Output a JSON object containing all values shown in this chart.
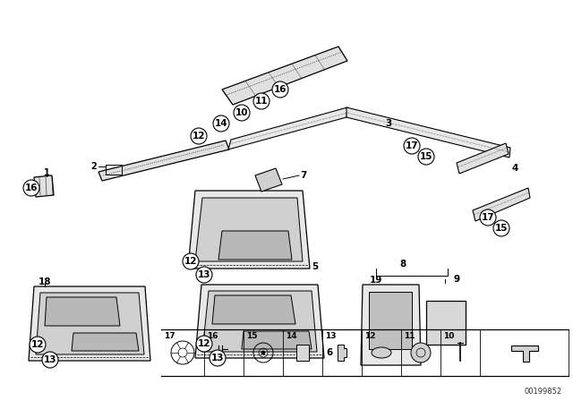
{
  "bg_color": "#ffffff",
  "line_color": "#000000",
  "figsize": [
    6.4,
    4.48
  ],
  "dpi": 100,
  "watermark": "00199852"
}
